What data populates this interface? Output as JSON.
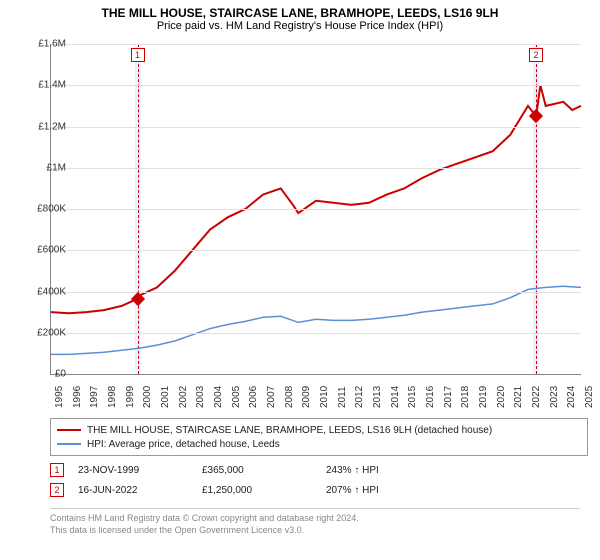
{
  "title": "THE MILL HOUSE, STAIRCASE LANE, BRAMHOPE, LEEDS, LS16 9LH",
  "subtitle": "Price paid vs. HM Land Registry's House Price Index (HPI)",
  "chart": {
    "type": "line",
    "background_color": "#ffffff",
    "grid_color": "#e0e0e0",
    "axis_color": "#888888",
    "xlim": [
      1995,
      2025
    ],
    "ylim": [
      0,
      1600000
    ],
    "ytick_step": 200000,
    "yticks": [
      "£0",
      "£200K",
      "£400K",
      "£600K",
      "£800K",
      "£1M",
      "£1.2M",
      "£1.4M",
      "£1.6M"
    ],
    "xticks": [
      "1995",
      "1996",
      "1997",
      "1998",
      "1999",
      "2000",
      "2001",
      "2002",
      "2003",
      "2004",
      "2005",
      "2006",
      "2007",
      "2008",
      "2009",
      "2010",
      "2011",
      "2012",
      "2013",
      "2014",
      "2015",
      "2016",
      "2017",
      "2018",
      "2019",
      "2020",
      "2021",
      "2022",
      "2023",
      "2024",
      "2025"
    ],
    "label_fontsize": 10,
    "title_fontsize": 12,
    "event_band_color": "rgba(200,220,255,0.35)",
    "event_dash_color": "#cc0000",
    "events": [
      {
        "label": "1",
        "year": 1999.9
      },
      {
        "label": "2",
        "year": 2022.46
      }
    ],
    "series": [
      {
        "name": "THE MILL HOUSE, STAIRCASE LANE, BRAMHOPE, LEEDS, LS16 9LH (detached house)",
        "color": "#cc0000",
        "line_width": 2,
        "data": [
          [
            1995,
            300000
          ],
          [
            1996,
            295000
          ],
          [
            1997,
            300000
          ],
          [
            1998,
            310000
          ],
          [
            1999,
            330000
          ],
          [
            1999.9,
            365000
          ],
          [
            2000,
            380000
          ],
          [
            2001,
            420000
          ],
          [
            2002,
            500000
          ],
          [
            2003,
            600000
          ],
          [
            2004,
            700000
          ],
          [
            2005,
            760000
          ],
          [
            2006,
            800000
          ],
          [
            2007,
            870000
          ],
          [
            2008,
            900000
          ],
          [
            2008.7,
            820000
          ],
          [
            2009,
            780000
          ],
          [
            2010,
            840000
          ],
          [
            2011,
            830000
          ],
          [
            2012,
            820000
          ],
          [
            2013,
            830000
          ],
          [
            2014,
            870000
          ],
          [
            2015,
            900000
          ],
          [
            2016,
            950000
          ],
          [
            2017,
            990000
          ],
          [
            2018,
            1020000
          ],
          [
            2019,
            1050000
          ],
          [
            2020,
            1080000
          ],
          [
            2021,
            1160000
          ],
          [
            2022,
            1300000
          ],
          [
            2022.46,
            1250000
          ],
          [
            2022.7,
            1400000
          ],
          [
            2023,
            1300000
          ],
          [
            2024,
            1320000
          ],
          [
            2024.5,
            1280000
          ],
          [
            2025,
            1300000
          ]
        ],
        "markers": [
          {
            "x": 1999.9,
            "y": 365000
          },
          {
            "x": 2022.46,
            "y": 1250000
          }
        ]
      },
      {
        "name": "HPI: Average price, detached house, Leeds",
        "color": "#5b8fd6",
        "line_width": 1.5,
        "data": [
          [
            1995,
            95000
          ],
          [
            1996,
            95000
          ],
          [
            1997,
            100000
          ],
          [
            1998,
            105000
          ],
          [
            1999,
            115000
          ],
          [
            2000,
            125000
          ],
          [
            2001,
            140000
          ],
          [
            2002,
            160000
          ],
          [
            2003,
            190000
          ],
          [
            2004,
            220000
          ],
          [
            2005,
            240000
          ],
          [
            2006,
            255000
          ],
          [
            2007,
            275000
          ],
          [
            2008,
            280000
          ],
          [
            2009,
            250000
          ],
          [
            2010,
            265000
          ],
          [
            2011,
            260000
          ],
          [
            2012,
            260000
          ],
          [
            2013,
            265000
          ],
          [
            2014,
            275000
          ],
          [
            2015,
            285000
          ],
          [
            2016,
            300000
          ],
          [
            2017,
            310000
          ],
          [
            2018,
            320000
          ],
          [
            2019,
            330000
          ],
          [
            2020,
            340000
          ],
          [
            2021,
            370000
          ],
          [
            2022,
            410000
          ],
          [
            2023,
            420000
          ],
          [
            2024,
            425000
          ],
          [
            2025,
            420000
          ]
        ]
      }
    ]
  },
  "legend": {
    "items": [
      {
        "color": "#cc0000",
        "label": "THE MILL HOUSE, STAIRCASE LANE, BRAMHOPE, LEEDS, LS16 9LH (detached house)"
      },
      {
        "color": "#5b8fd6",
        "label": "HPI: Average price, detached house, Leeds"
      }
    ]
  },
  "sales": [
    {
      "marker": "1",
      "date": "23-NOV-1999",
      "price": "£365,000",
      "pct": "243% ↑ HPI"
    },
    {
      "marker": "2",
      "date": "16-JUN-2022",
      "price": "£1,250,000",
      "pct": "207% ↑ HPI"
    }
  ],
  "footer": {
    "line1": "Contains HM Land Registry data © Crown copyright and database right 2024.",
    "line2": "This data is licensed under the Open Government Licence v3.0."
  }
}
